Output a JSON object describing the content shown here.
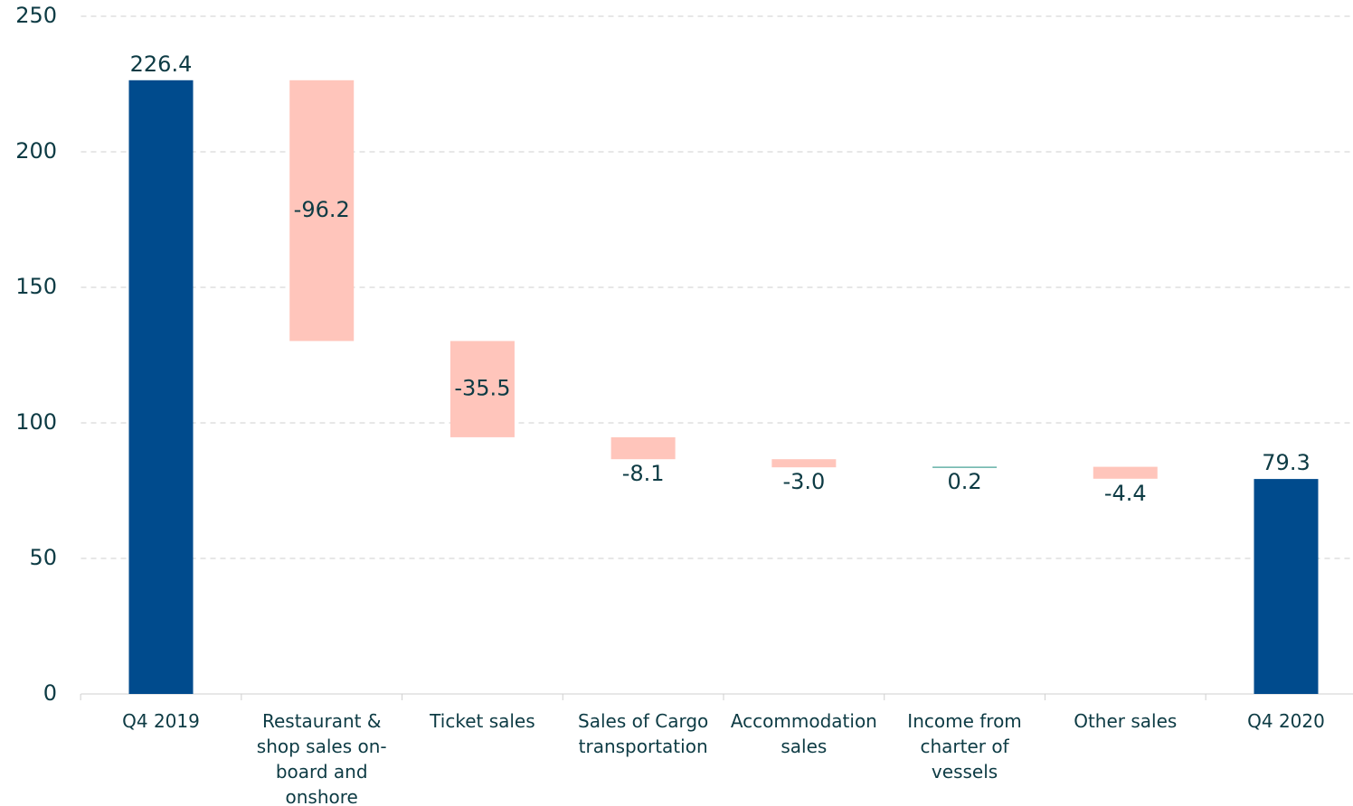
{
  "chart_data": {
    "type": "waterfall",
    "categories": [
      "Q4 2019",
      "Restaurant & shop sales on-board and onshore",
      "Ticket sales",
      "Sales of Cargo transportation",
      "Accommodation sales",
      "Income from charter of vessels",
      "Other sales",
      "Q4 2020"
    ],
    "values": [
      226.4,
      -96.2,
      -35.5,
      -8.1,
      -3.0,
      0.2,
      -4.4,
      79.3
    ],
    "value_labels": [
      "226.4",
      "-96.2",
      "-35.5",
      "-8.1",
      "-3.0",
      "0.2",
      "-4.4",
      "79.3"
    ],
    "measure": [
      "absolute",
      "relative",
      "relative",
      "relative",
      "relative",
      "relative",
      "relative",
      "absolute"
    ],
    "colors": {
      "absolute": "#004b8d",
      "decrease": "#ffc5bb",
      "increase": "#1a8c7d"
    },
    "ylim": [
      0,
      250
    ],
    "yticks": [
      0,
      50,
      100,
      150,
      200,
      250
    ],
    "grid": true
  }
}
